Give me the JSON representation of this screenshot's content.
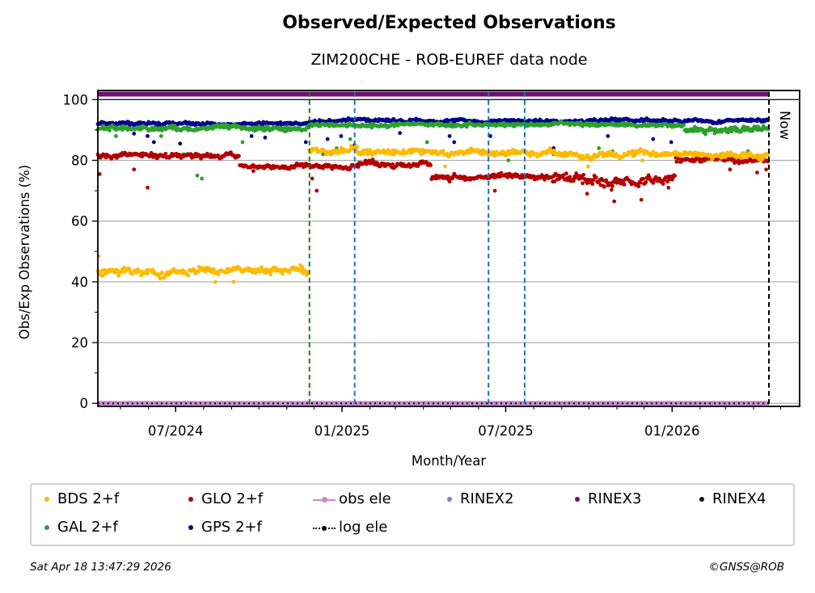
{
  "chart_data": {
    "type": "scatter",
    "title": "Observed/Expected Observations",
    "subtitle": "ZIM200CHE - ROB-EUREF data node",
    "xlabel": "Month/Year",
    "ylabel": "Obs/Exp Observations (%)",
    "xlim": [
      "2024-04-06",
      "2026-05-22"
    ],
    "ylim": [
      -1,
      103
    ],
    "yticks": [
      0,
      20,
      40,
      60,
      80,
      100
    ],
    "yminor_step": 10,
    "xticks": [
      {
        "date": "2024-07-01",
        "label": "07/2024"
      },
      {
        "date": "2025-01-01",
        "label": "01/2025"
      },
      {
        "date": "2025-07-01",
        "label": "07/2025"
      },
      {
        "date": "2026-01-01",
        "label": "01/2026"
      }
    ],
    "grid": "y-major",
    "now_label": "Now",
    "now_date": "2026-04-18",
    "event_lines": [
      {
        "date": "2024-11-26",
        "color": "#1a7f1a",
        "style": "dashed"
      },
      {
        "date": "2025-01-15",
        "color": "#1f6fc0",
        "style": "dashed"
      },
      {
        "date": "2025-06-12",
        "color": "#1f6fc0",
        "style": "dashed"
      },
      {
        "date": "2025-07-22",
        "color": "#1f6fc0",
        "style": "dashed"
      },
      {
        "date": "2026-04-18",
        "color": "#000000",
        "style": "dashed"
      }
    ],
    "series": [
      {
        "name": "GPS 2+f",
        "color": "#00008b",
        "segments": [
          {
            "start": "2024-04-06",
            "end": "2024-11-26",
            "mean": 92.0,
            "spread": 0.6,
            "outliers": [
              [
                40,
                88.8
              ],
              [
                55,
                88
              ],
              [
                62,
                86
              ],
              [
                91,
                85.5
              ],
              [
                170,
                88
              ],
              [
                185,
                87.5
              ],
              [
                230,
                86
              ]
            ]
          },
          {
            "start": "2024-11-26",
            "end": "2026-04-18",
            "mean": 93.0,
            "spread": 0.6,
            "outliers": [
              [
                20,
                87
              ],
              [
                35,
                88
              ],
              [
                50,
                85
              ],
              [
                100,
                89
              ],
              [
                155,
                88
              ],
              [
                160,
                86
              ],
              [
                200,
                88
              ],
              [
                270,
                84
              ],
              [
                330,
                88
              ],
              [
                380,
                87
              ],
              [
                400,
                86
              ]
            ]
          }
        ]
      },
      {
        "name": "GAL 2+f",
        "color": "#2ca02c",
        "segments": [
          {
            "start": "2024-04-06",
            "end": "2024-11-26",
            "mean": 90.5,
            "spread": 0.9,
            "outliers": [
              [
                20,
                88
              ],
              [
                70,
                88
              ],
              [
                95,
                82
              ],
              [
                100,
                82
              ],
              [
                110,
                75
              ],
              [
                115,
                74
              ],
              [
                125,
                82
              ],
              [
                160,
                86
              ]
            ]
          },
          {
            "start": "2024-11-26",
            "end": "2026-01-15",
            "mean": 91.8,
            "spread": 0.7,
            "outliers": [
              [
                10,
                83
              ],
              [
                15,
                82
              ],
              [
                30,
                84
              ],
              [
                45,
                87
              ],
              [
                130,
                86
              ],
              [
                190,
                83
              ],
              [
                220,
                80
              ],
              [
                270,
                82
              ],
              [
                320,
                84
              ],
              [
                335,
                83
              ]
            ]
          },
          {
            "start": "2026-01-15",
            "end": "2026-04-18",
            "mean": 90.0,
            "spread": 1.2,
            "outliers": [
              [
                40,
                82
              ],
              [
                70,
                83
              ],
              [
                85,
                81
              ]
            ]
          }
        ]
      },
      {
        "name": "GLO 2+f",
        "color": "#b30000",
        "segments": [
          {
            "start": "2024-04-06",
            "end": "2024-09-10",
            "mean": 81.5,
            "spread": 0.9,
            "outliers": [
              [
                2,
                75.5
              ],
              [
                40,
                77
              ],
              [
                55,
                71
              ]
            ]
          },
          {
            "start": "2024-09-10",
            "end": "2025-01-20",
            "mean": 78.0,
            "spread": 0.8,
            "outliers": [
              [
                15,
                76.5
              ],
              [
                80,
                74
              ],
              [
                85,
                70
              ]
            ]
          },
          {
            "start": "2025-01-20",
            "end": "2025-04-10",
            "mean": 79.0,
            "spread": 1.0,
            "outliers": []
          },
          {
            "start": "2025-04-10",
            "end": "2025-08-20",
            "mean": 74.5,
            "spread": 0.9,
            "outliers": [
              [
                70,
                70
              ],
              [
                20,
                73
              ]
            ]
          },
          {
            "start": "2025-08-20",
            "end": "2026-01-05",
            "mean": 74.0,
            "spread": 2.0,
            "outliers": [
              [
                40,
                69
              ],
              [
                70,
                66.5
              ],
              [
                100,
                67
              ],
              [
                130,
                71
              ]
            ]
          },
          {
            "start": "2026-01-05",
            "end": "2026-04-18",
            "mean": 80.0,
            "spread": 1.0,
            "outliers": [
              [
                60,
                77
              ],
              [
                90,
                76
              ],
              [
                100,
                77
              ]
            ]
          }
        ]
      },
      {
        "name": "BDS 2+f",
        "color": "#ffb900",
        "segments": [
          {
            "start": "2024-04-06",
            "end": "2024-11-26",
            "mean": 43.5,
            "spread": 1.3,
            "outliers": [
              [
                1,
                48.5
              ],
              [
                130,
                40
              ],
              [
                150,
                40
              ]
            ]
          },
          {
            "start": "2024-11-26",
            "end": "2025-01-25",
            "mean": 83.0,
            "spread": 1.2,
            "outliers": []
          },
          {
            "start": "2025-01-25",
            "end": "2025-08-01",
            "mean": 82.5,
            "spread": 1.0,
            "outliers": [
              [
                90,
                78
              ]
            ]
          },
          {
            "start": "2025-08-01",
            "end": "2026-04-18",
            "mean": 82.0,
            "spread": 1.2,
            "outliers": [
              [
                60,
                78
              ],
              [
                120,
                80
              ]
            ]
          }
        ]
      },
      {
        "name": "RINEX3",
        "color": "#6d0f6d",
        "constant": 101.8,
        "start": "2024-04-06",
        "end": "2026-04-18"
      },
      {
        "name": "obs ele",
        "color": "#c58ad1",
        "constant": 0,
        "start": "2024-04-06",
        "end": "2026-04-18"
      },
      {
        "name": "log ele",
        "color": "#000000",
        "constant": 0,
        "start": "2024-04-06",
        "end": "2026-04-18"
      }
    ],
    "legend": {
      "placement": "below",
      "entries": [
        {
          "label": "BDS 2+f",
          "color": "#ffb900",
          "kind": "dot"
        },
        {
          "label": "GLO 2+f",
          "color": "#b30000",
          "kind": "dot"
        },
        {
          "label": "obs ele",
          "color": "#c58ad1",
          "kind": "line-dot"
        },
        {
          "label": "RINEX2",
          "color": "#7f7fc4",
          "kind": "dot"
        },
        {
          "label": "RINEX3",
          "color": "#6d0f6d",
          "kind": "dot"
        },
        {
          "label": "RINEX4",
          "color": "#1a0a1f",
          "kind": "dot"
        },
        {
          "label": "GAL 2+f",
          "color": "#2ca02c",
          "kind": "dot"
        },
        {
          "label": "GPS 2+f",
          "color": "#00008b",
          "kind": "dot"
        },
        {
          "label": "log ele",
          "color": "#000000",
          "kind": "dotted-dot"
        }
      ]
    }
  },
  "footer": {
    "timestamp": "Sat Apr 18 13:47:29 2026",
    "copyright": "©GNSS@ROB"
  }
}
